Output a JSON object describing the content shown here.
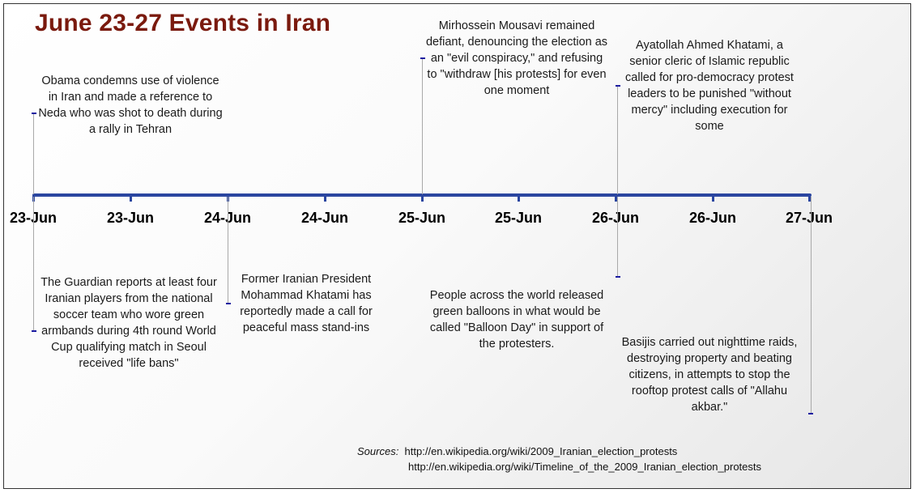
{
  "title": "June 23-27 Events in Iran",
  "axis_color": "#2b46a0",
  "title_color": "#7a1a0e",
  "dates": [
    "23-Jun",
    "23-Jun",
    "24-Jun",
    "24-Jun",
    "25-Jun",
    "25-Jun",
    "26-Jun",
    "26-Jun",
    "27-Jun"
  ],
  "events": [
    {
      "text": "Obama condemns use of violence in Iran and made a reference to Neda who was shot to death during a rally in Tehran"
    },
    {
      "text": "The Guardian reports at least four Iranian players from the national soccer team who wore green armbands during 4th round World Cup qualifying match in Seoul received \"life bans\""
    },
    {
      "text": "Former Iranian President Mohammad Khatami has reportedly made a call for peaceful mass stand-ins"
    },
    {
      "text": "Mirhossein Mousavi remained defiant, denouncing the election as an \"evil conspiracy,\" and refusing to \"withdraw [his protests] for even one moment"
    },
    {
      "text": "People across the world released green balloons in what would be called \"Balloon Day\" in support of the protesters."
    },
    {
      "text": "Ayatollah Ahmed Khatami, a senior cleric of Islamic republic called for pro-democracy protest leaders to be punished \"without mercy\" including execution for some"
    },
    {
      "text": "Basijis carried out nighttime raids, destroying property and beating citizens, in attempts to stop the rooftop protest calls of \"Allahu akbar.\""
    }
  ],
  "sources": {
    "label": "Sources:",
    "url1": "http://en.wikipedia.org/wiki/2009_Iranian_election_protests",
    "url2": "http://en.wikipedia.org/wiki/Timeline_of_the_2009_Iranian_election_protests"
  }
}
